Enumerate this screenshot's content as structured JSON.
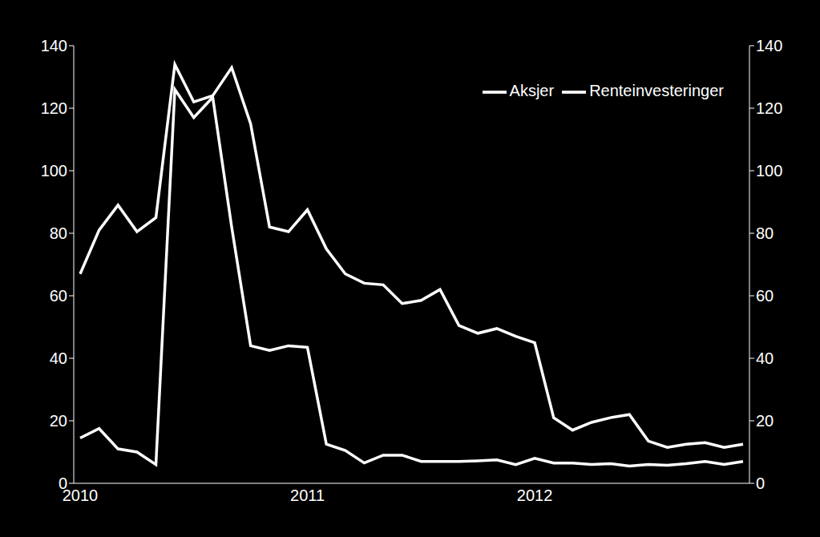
{
  "chart_data": {
    "type": "line",
    "categories": [
      "2010",
      null,
      null,
      null,
      null,
      null,
      null,
      null,
      null,
      null,
      null,
      null,
      "2011",
      null,
      null,
      null,
      null,
      null,
      null,
      null,
      null,
      null,
      null,
      null,
      "2012",
      null,
      null,
      null,
      null,
      null,
      null,
      null,
      null,
      null,
      null,
      null
    ],
    "series": [
      {
        "name": "Aksjer",
        "color": "#ffffff",
        "values": [
          14.5,
          17.5,
          11,
          10,
          6,
          126,
          117,
          123.5,
          82,
          44,
          42.5,
          44,
          43.5,
          12.5,
          10.5,
          6.5,
          9,
          9,
          7,
          7,
          7,
          7.2,
          7.5,
          6,
          8,
          6.5,
          6.5,
          6,
          6.3,
          5.5,
          6,
          5.8,
          6.3,
          7,
          6,
          7
        ]
      },
      {
        "name": "Renteinvesteringer",
        "color": "#ffffff",
        "axis": "y2",
        "values": [
          67,
          81,
          89,
          80.5,
          85,
          134,
          122,
          124,
          133,
          115,
          82,
          80.5,
          87.5,
          75,
          67,
          64,
          63.5,
          57.5,
          58.5,
          62,
          50.5,
          48,
          49.5,
          47,
          45,
          21,
          17,
          19.5,
          21,
          22,
          13.5,
          11.5,
          12.5,
          13,
          11.5,
          12.5
        ]
      }
    ],
    "ylim": [
      0,
      140
    ],
    "yticks": [
      0,
      20,
      40,
      60,
      80,
      100,
      120,
      140
    ],
    "y2lim": [
      0,
      140
    ],
    "y2ticks": [
      0,
      20,
      40,
      60,
      80,
      100,
      120,
      140
    ],
    "grid": false,
    "legend": "upper right"
  }
}
